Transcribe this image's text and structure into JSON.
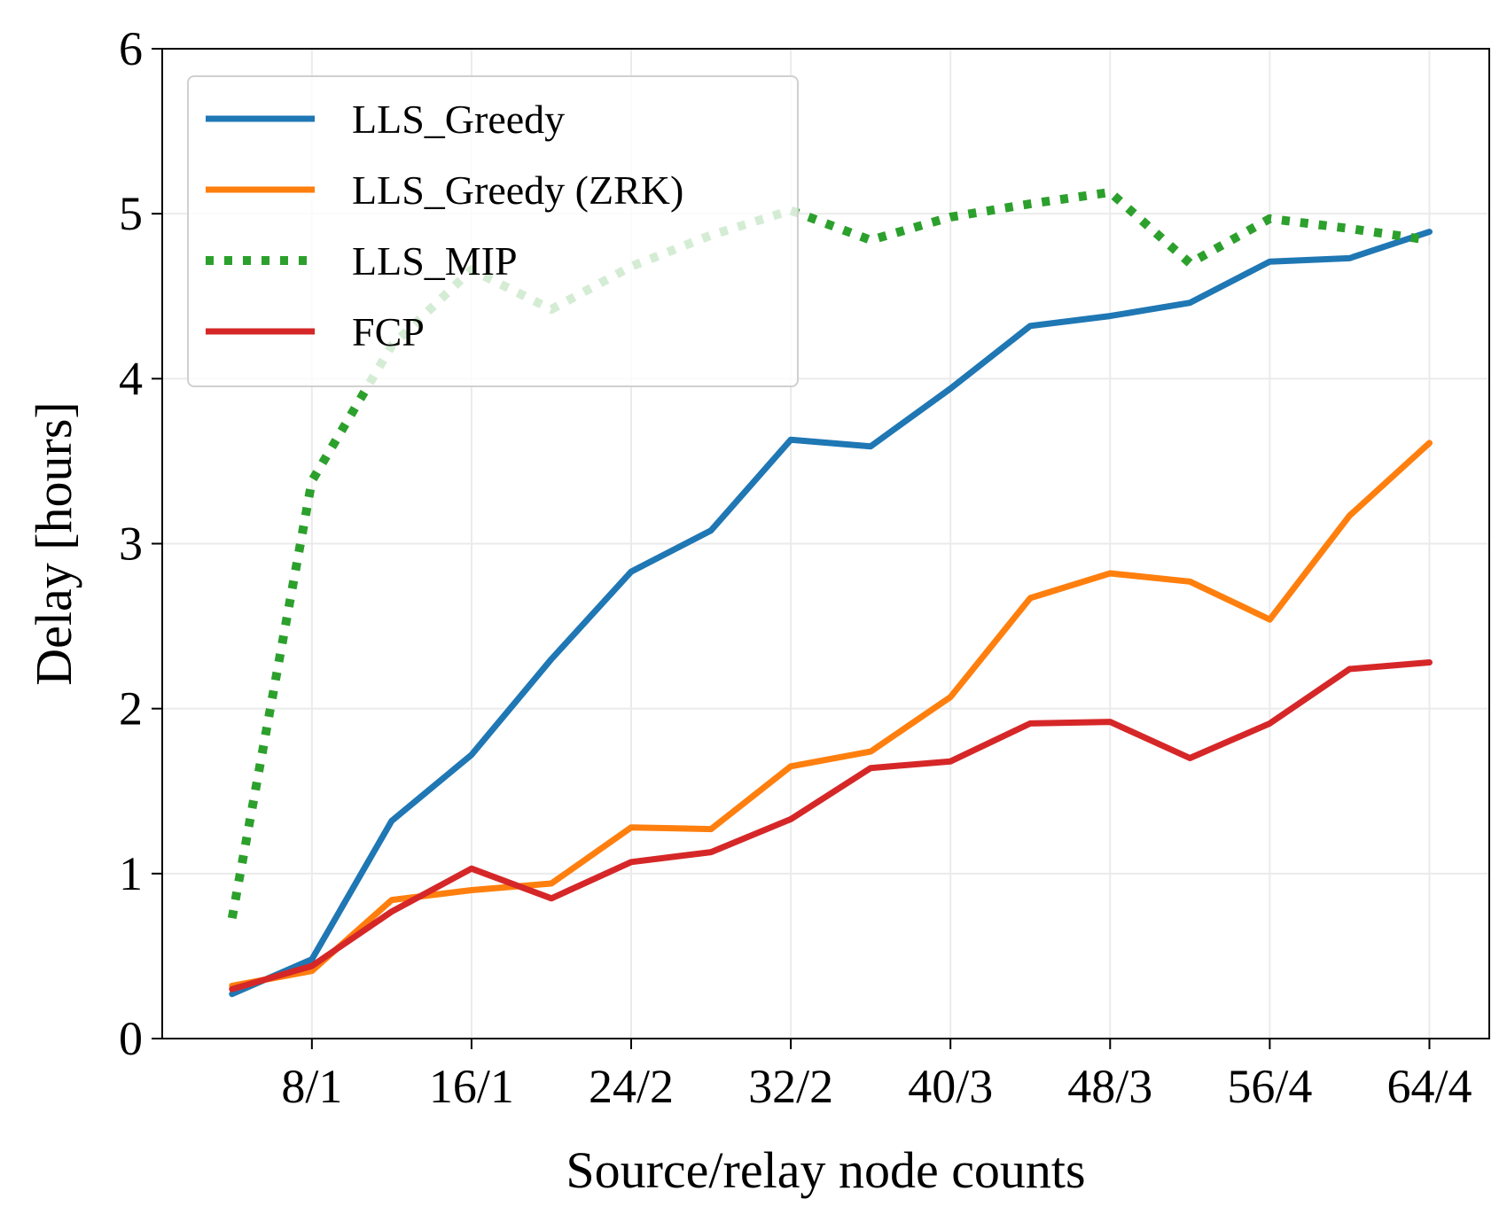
{
  "chart_data": {
    "type": "line",
    "title": "",
    "xlabel": "Source/relay node counts",
    "ylabel": "Delay [hours]",
    "x": [
      4,
      8,
      12,
      16,
      20,
      24,
      28,
      32,
      36,
      40,
      44,
      48,
      52,
      56,
      60,
      64
    ],
    "xticks": [
      {
        "value": 8,
        "label": "8/1"
      },
      {
        "value": 16,
        "label": "16/1"
      },
      {
        "value": 24,
        "label": "24/2"
      },
      {
        "value": 32,
        "label": "32/2"
      },
      {
        "value": 40,
        "label": "40/3"
      },
      {
        "value": 48,
        "label": "48/3"
      },
      {
        "value": 56,
        "label": "56/4"
      },
      {
        "value": 64,
        "label": "64/4"
      }
    ],
    "yticks": [
      "0",
      "1",
      "2",
      "3",
      "4",
      "5",
      "6"
    ],
    "xlim": [
      0.5,
      67
    ],
    "ylim": [
      0,
      6
    ],
    "grid": true,
    "legend_position": "upper-left",
    "series": [
      {
        "name": "LLS_Greedy",
        "color": "#1f77b4",
        "style": "solid",
        "values": [
          0.27,
          0.48,
          1.32,
          1.72,
          2.3,
          2.83,
          3.08,
          3.63,
          3.59,
          3.94,
          4.32,
          4.38,
          4.46,
          4.71,
          4.73,
          4.89
        ]
      },
      {
        "name": "LLS_Greedy (ZRK)",
        "color": "#ff7f0e",
        "style": "solid",
        "values": [
          0.32,
          0.41,
          0.84,
          0.9,
          0.94,
          1.28,
          1.27,
          1.65,
          1.74,
          2.07,
          2.67,
          2.82,
          2.77,
          2.54,
          3.17,
          3.61
        ]
      },
      {
        "name": "LLS_MIP",
        "color": "#2ca02c",
        "style": "dotted",
        "values": [
          0.73,
          3.38,
          4.2,
          4.66,
          4.42,
          4.68,
          4.87,
          5.02,
          4.84,
          4.98,
          5.06,
          5.13,
          4.7,
          4.97,
          4.91,
          4.84
        ]
      },
      {
        "name": "FCP",
        "color": "#d62728",
        "style": "solid",
        "values": [
          0.3,
          0.44,
          0.77,
          1.03,
          0.85,
          1.07,
          1.13,
          1.33,
          1.64,
          1.68,
          1.91,
          1.92,
          1.7,
          1.91,
          2.24,
          2.28
        ]
      }
    ]
  }
}
